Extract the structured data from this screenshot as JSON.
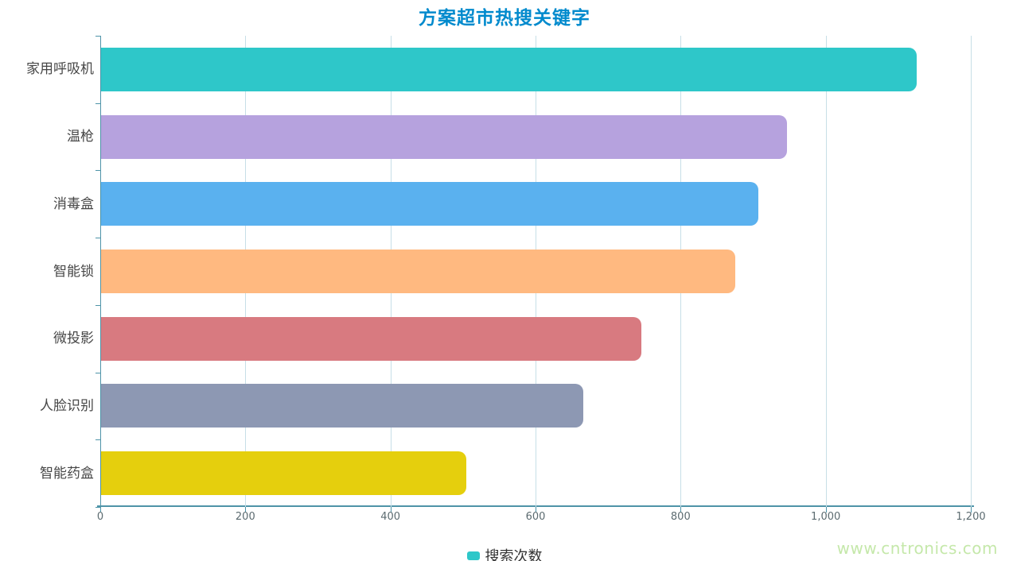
{
  "title": {
    "text": "方案超市热搜关键字",
    "color": "#008acd"
  },
  "legend": {
    "label": "搜索次数",
    "marker_color": "#2ec7c9"
  },
  "watermark": {
    "text": "www.cntronics.com",
    "color": "#c5e8aa"
  },
  "axis": {
    "line_color": "#4e94a8",
    "grid_color": "#c7dfe7",
    "tick_label_color": "#5c6b70",
    "category_label_color": "#464646"
  },
  "chart_data": {
    "type": "bar",
    "orientation": "horizontal",
    "title": "方案超市热搜关键字",
    "categories": [
      "家用呼吸机",
      "温枪",
      "消毒盒",
      "智能锁",
      "微投影",
      "人脸识别",
      "智能药盒"
    ],
    "series": [
      {
        "name": "搜索次数",
        "values": [
          1124,
          945,
          906,
          874,
          745,
          665,
          503
        ]
      }
    ],
    "bar_colors": [
      "#2ec7c9",
      "#b6a2de",
      "#5ab1ef",
      "#ffb980",
      "#d87a80",
      "#8d98b3",
      "#e5cf0d"
    ],
    "xlabel": "",
    "ylabel": "",
    "xlim": [
      0,
      1200
    ],
    "x_tick_values": [
      0,
      200,
      400,
      600,
      800,
      1000,
      1200
    ],
    "x_tick_labels": [
      "0",
      "200",
      "400",
      "600",
      "800",
      "1,000",
      "1,200"
    ],
    "grid": true,
    "legend_position": "bottom"
  }
}
